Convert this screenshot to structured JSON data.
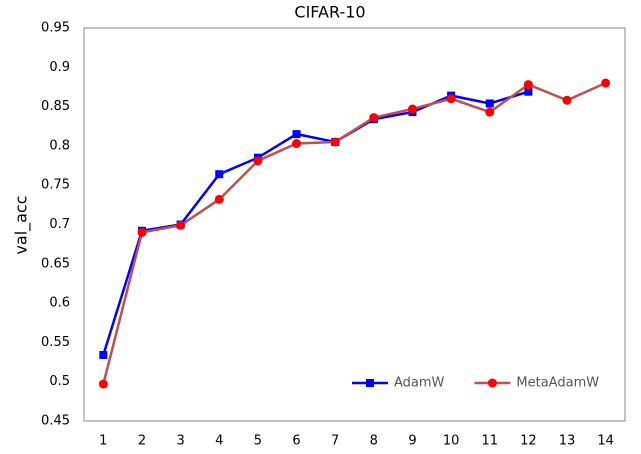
{
  "chart_data": {
    "type": "line",
    "title": "CIFAR-10",
    "y_label": "val_acc",
    "categories": [
      "1",
      "2",
      "3",
      "4",
      "5",
      "6",
      "7",
      "8",
      "9",
      "10",
      "11",
      "12",
      "13",
      "14"
    ],
    "series": [
      {
        "name": "AdamW",
        "color": "#0000ff",
        "marker_color": "#0000ff",
        "marker": "square",
        "values": [
          0.534,
          0.692,
          0.7,
          0.764,
          0.785,
          0.815,
          0.805,
          0.834,
          0.843,
          0.864,
          0.854,
          0.869,
          null,
          null
        ]
      },
      {
        "name": "MetaAdamW",
        "color": "#c0504d",
        "marker_color": "#ff0000",
        "marker": "circle",
        "values": [
          0.497,
          0.69,
          0.699,
          0.732,
          0.781,
          0.803,
          0.805,
          0.836,
          0.847,
          0.86,
          0.843,
          0.878,
          0.858,
          0.88
        ]
      }
    ],
    "ylim": [
      0.45,
      0.95
    ],
    "yticks": [
      0.45,
      0.5,
      0.55,
      0.6,
      0.65,
      0.7,
      0.75,
      0.8,
      0.85,
      0.9,
      0.95
    ],
    "grid": false,
    "legend": "lower right"
  }
}
